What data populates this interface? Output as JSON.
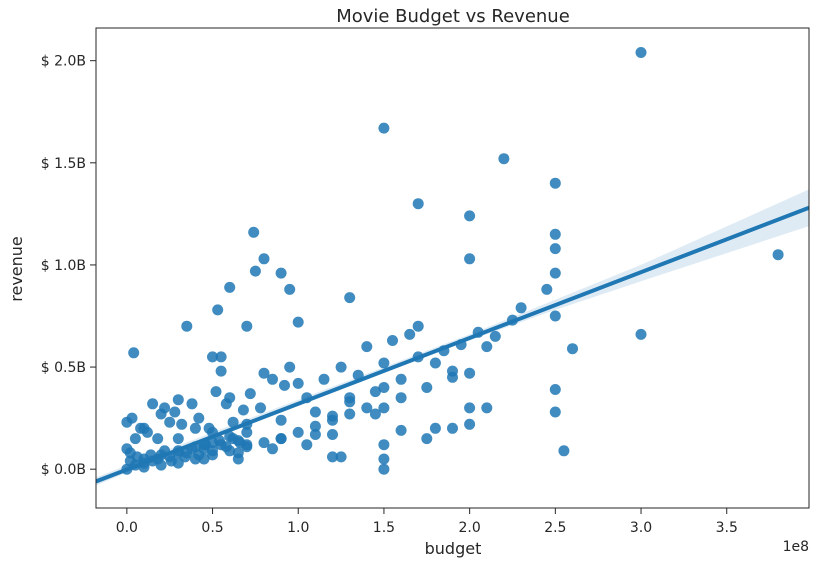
{
  "chart_data": {
    "type": "scatter",
    "title": "Movie Budget vs Revenue",
    "xlabel": "budget",
    "ylabel": "revenue",
    "x_offset_label": "1e8",
    "xlim": [
      -0.18,
      3.98
    ],
    "ylim": [
      -0.19,
      2.16
    ],
    "x_ticks": [
      0.0,
      0.5,
      1.0,
      1.5,
      2.0,
      2.5,
      3.0,
      3.5
    ],
    "x_tick_labels": [
      "0.0",
      "0.5",
      "1.0",
      "1.5",
      "2.0",
      "2.5",
      "3.0",
      "3.5"
    ],
    "y_ticks": [
      0.0,
      0.5,
      1.0,
      1.5,
      2.0
    ],
    "y_tick_labels": [
      "$ 0.0B",
      "$ 0.5B",
      "$ 1.0B",
      "$ 1.5B",
      "$ 2.0B"
    ],
    "grid": false,
    "point_color": "#1f77b4",
    "regression_line": {
      "x": [
        -0.18,
        3.98
      ],
      "y": [
        -0.06,
        1.28
      ]
    },
    "confidence_band": {
      "x": [
        -0.18,
        0.5,
        1.0,
        1.5,
        2.0,
        2.5,
        3.0,
        3.98
      ],
      "lower": [
        -0.08,
        0.16,
        0.32,
        0.48,
        0.63,
        0.78,
        0.92,
        1.19
      ],
      "upper": [
        -0.04,
        0.18,
        0.34,
        0.5,
        0.66,
        0.83,
        1.0,
        1.37
      ]
    },
    "series": [
      {
        "x": [
          3.0,
          1.5,
          2.2,
          2.5,
          1.7,
          2.0,
          0.74,
          3.8,
          2.5,
          2.5,
          2.5,
          0.8,
          2.0,
          2.5,
          2.45,
          0.75,
          0.9,
          0.53,
          0.95,
          2.3,
          0.6,
          0.35,
          1.3,
          0.55,
          0.7,
          1.0,
          3.0,
          0.04,
          2.6,
          2.5,
          2.5,
          2.55,
          2.1,
          1.6,
          1.75,
          1.8,
          1.2,
          1.9,
          2.0,
          2.0,
          2.0,
          1.5,
          1.5,
          1.5,
          1.5,
          1.5,
          1.4,
          1.3,
          1.25,
          1.2,
          1.1,
          1.0,
          0.95,
          0.9,
          0.8,
          0.7,
          0.65,
          0.6,
          0.55,
          0.5,
          0.45,
          0.4,
          0.3,
          0.25,
          0.2,
          0.15,
          0.1,
          0.05,
          0.02,
          0.0,
          0.0,
          0.03,
          0.08,
          0.12,
          0.18,
          0.22,
          0.28,
          0.32,
          0.38,
          0.42,
          0.48,
          0.52,
          0.58,
          0.62,
          0.68,
          0.72,
          0.78,
          0.85,
          0.92,
          1.05,
          1.15,
          1.25,
          1.35,
          1.45,
          1.55,
          1.65,
          1.7,
          1.85,
          1.95,
          2.05,
          2.15,
          2.25,
          0.1,
          0.2,
          0.3,
          0.4,
          0.5,
          0.6,
          0.05,
          0.15,
          0.25,
          0.35,
          0.45,
          0.55,
          0.65,
          0.0,
          0.1,
          0.2,
          0.3,
          0.4,
          0.5,
          0.6,
          0.7,
          0.8,
          0.9,
          1.0,
          1.1,
          1.2,
          1.3,
          1.4,
          1.6,
          1.75,
          1.9,
          0.3,
          0.5,
          0.7,
          0.9,
          1.1,
          1.3,
          1.5,
          1.7,
          1.9,
          2.1,
          0.45,
          0.65,
          0.85,
          1.05,
          1.2,
          1.45,
          1.6,
          1.8,
          0.02,
          0.06,
          0.1,
          0.14,
          0.18,
          0.22,
          0.26,
          0.3,
          0.34,
          0.38,
          0.42,
          0.46,
          0.5,
          0.54,
          0.58,
          0.62,
          0.66,
          0.7
        ],
        "y": [
          2.04,
          1.67,
          1.52,
          1.4,
          1.3,
          1.24,
          1.16,
          1.05,
          1.15,
          1.08,
          0.96,
          1.03,
          1.03,
          0.75,
          0.88,
          0.97,
          0.96,
          0.78,
          0.88,
          0.79,
          0.89,
          0.7,
          0.84,
          0.55,
          0.7,
          0.72,
          0.66,
          0.57,
          0.59,
          0.39,
          0.28,
          0.09,
          0.3,
          0.19,
          0.15,
          0.2,
          0.06,
          0.2,
          0.22,
          0.3,
          0.47,
          0.0,
          0.05,
          0.12,
          0.3,
          0.4,
          0.6,
          0.35,
          0.06,
          0.26,
          0.17,
          0.42,
          0.5,
          0.15,
          0.47,
          0.22,
          0.05,
          0.35,
          0.48,
          0.55,
          0.12,
          0.2,
          0.34,
          0.23,
          0.27,
          0.32,
          0.2,
          0.15,
          0.08,
          0.1,
          0.23,
          0.25,
          0.2,
          0.18,
          0.15,
          0.3,
          0.28,
          0.22,
          0.32,
          0.25,
          0.2,
          0.38,
          0.32,
          0.23,
          0.29,
          0.37,
          0.3,
          0.44,
          0.41,
          0.35,
          0.44,
          0.5,
          0.46,
          0.38,
          0.63,
          0.66,
          0.7,
          0.58,
          0.61,
          0.67,
          0.65,
          0.73,
          0.05,
          0.07,
          0.09,
          0.11,
          0.13,
          0.16,
          0.02,
          0.04,
          0.06,
          0.08,
          0.1,
          0.12,
          0.14,
          0.0,
          0.01,
          0.02,
          0.03,
          0.05,
          0.07,
          0.09,
          0.11,
          0.13,
          0.15,
          0.18,
          0.21,
          0.24,
          0.27,
          0.3,
          0.35,
          0.4,
          0.45,
          0.15,
          0.18,
          0.12,
          0.24,
          0.28,
          0.33,
          0.52,
          0.55,
          0.48,
          0.6,
          0.05,
          0.08,
          0.1,
          0.12,
          0.17,
          0.27,
          0.44,
          0.52,
          0.04,
          0.06,
          0.03,
          0.07,
          0.05,
          0.09,
          0.04,
          0.08,
          0.06,
          0.1,
          0.07,
          0.12,
          0.09,
          0.14,
          0.11,
          0.15,
          0.13,
          0.18
        ]
      }
    ]
  }
}
